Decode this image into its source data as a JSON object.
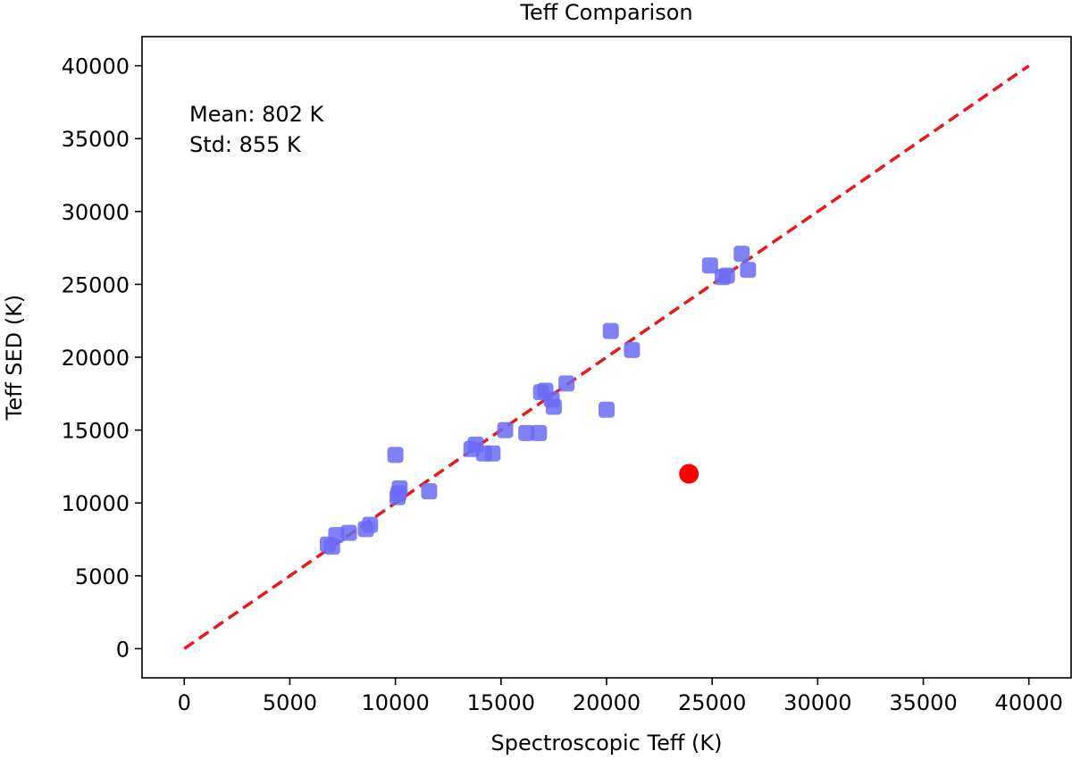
{
  "chart_data": {
    "type": "scatter",
    "title": "Teff Comparison",
    "xlabel": "Spectroscopic Teff (K)",
    "ylabel": "Teff SED (K)",
    "xlim": [
      -2000,
      42000
    ],
    "ylim": [
      -2000,
      42000
    ],
    "xticks": [
      0,
      5000,
      10000,
      15000,
      20000,
      25000,
      30000,
      35000,
      40000
    ],
    "yticks": [
      0,
      5000,
      10000,
      15000,
      20000,
      25000,
      30000,
      35000,
      40000
    ],
    "grid": false,
    "annotations": [
      "Mean: 802 K",
      "Std: 855 K"
    ],
    "reference_line": {
      "style": "dashed",
      "color": "#e8191b",
      "x": [
        0,
        40000
      ],
      "y": [
        0,
        40000
      ]
    },
    "series": [
      {
        "color": "#6b6bf5",
        "marker": "rounded-square",
        "points": [
          [
            6800,
            7150
          ],
          [
            7000,
            7000
          ],
          [
            7200,
            7800
          ],
          [
            7800,
            7950
          ],
          [
            8600,
            8200
          ],
          [
            8800,
            8500
          ],
          [
            10000,
            13300
          ],
          [
            10100,
            10400
          ],
          [
            10150,
            10650
          ],
          [
            10200,
            11000
          ],
          [
            11600,
            10800
          ],
          [
            13600,
            13700
          ],
          [
            13800,
            14000
          ],
          [
            14200,
            13400
          ],
          [
            14600,
            13400
          ],
          [
            15200,
            15000
          ],
          [
            16200,
            14800
          ],
          [
            16800,
            14800
          ],
          [
            16900,
            17600
          ],
          [
            17100,
            17700
          ],
          [
            17400,
            17100
          ],
          [
            17500,
            16600
          ],
          [
            18100,
            18200
          ],
          [
            20000,
            16400
          ],
          [
            20200,
            21800
          ],
          [
            21200,
            20500
          ],
          [
            24900,
            26300
          ],
          [
            25500,
            25500
          ],
          [
            25700,
            25600
          ],
          [
            26400,
            27100
          ],
          [
            26700,
            26000
          ]
        ]
      },
      {
        "color": "#ff0000",
        "marker": "circle",
        "points": [
          [
            23900,
            12000
          ]
        ]
      }
    ]
  }
}
